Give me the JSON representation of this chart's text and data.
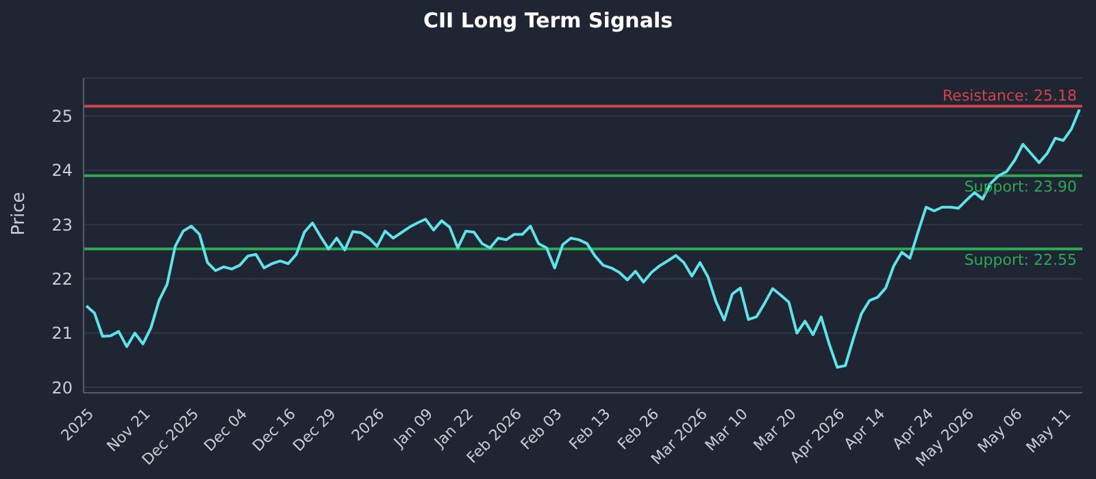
{
  "chart_data": {
    "type": "line",
    "title": "CII Long Term Signals",
    "ylabel": "Price",
    "categories": [
      null,
      "2025",
      null,
      null,
      null,
      null,
      null,
      null,
      "Nov 21",
      null,
      null,
      null,
      null,
      null,
      "Dec 2025",
      null,
      null,
      null,
      null,
      null,
      "Dec 04",
      null,
      null,
      null,
      null,
      null,
      "Dec 16",
      null,
      null,
      null,
      null,
      "Dec 29",
      null,
      null,
      null,
      null,
      null,
      "2026",
      null,
      null,
      null,
      null,
      null,
      "Jan 09",
      null,
      null,
      null,
      null,
      "Jan 22",
      null,
      null,
      null,
      null,
      null,
      "Feb 2026",
      null,
      null,
      null,
      null,
      "Feb 03",
      null,
      null,
      null,
      null,
      null,
      "Feb 13",
      null,
      null,
      null,
      null,
      null,
      "Feb 26",
      null,
      null,
      null,
      null,
      null,
      "Mar 2026",
      null,
      null,
      null,
      null,
      "Mar 10",
      null,
      null,
      null,
      null,
      null,
      "Mar 20",
      null,
      null,
      null,
      null,
      null,
      "Apr 2026",
      null,
      null,
      null,
      null,
      "Apr 14",
      null,
      null,
      null,
      null,
      null,
      "Apr 24",
      null,
      null,
      null,
      null,
      "May 2026",
      null,
      null,
      null,
      null,
      null,
      "May 06",
      null,
      null,
      null,
      null,
      null,
      "May 11",
      null
    ],
    "series": [
      {
        "color": "#5fe3e8",
        "values": [
          21.5,
          21.37,
          20.94,
          20.95,
          21.03,
          20.75,
          21.0,
          20.8,
          21.1,
          21.6,
          21.9,
          22.6,
          22.88,
          22.97,
          22.82,
          22.3,
          22.15,
          22.22,
          22.18,
          22.25,
          22.42,
          22.45,
          22.2,
          22.28,
          22.33,
          22.28,
          22.45,
          22.86,
          23.03,
          22.78,
          22.55,
          22.75,
          22.53,
          22.87,
          22.85,
          22.75,
          22.6,
          22.88,
          22.75,
          22.85,
          22.95,
          23.03,
          23.1,
          22.9,
          23.07,
          22.95,
          22.57,
          22.88,
          22.86,
          22.65,
          22.57,
          22.75,
          22.72,
          22.82,
          22.82,
          22.97,
          22.65,
          22.57,
          22.2,
          22.63,
          22.75,
          22.72,
          22.65,
          22.42,
          22.25,
          22.2,
          22.12,
          21.98,
          22.14,
          21.94,
          22.12,
          22.24,
          22.33,
          22.43,
          22.3,
          22.05,
          22.3,
          22.03,
          21.57,
          21.24,
          21.72,
          21.83,
          21.25,
          21.3,
          21.55,
          21.82,
          21.7,
          21.57,
          21.0,
          21.22,
          20.97,
          21.3,
          20.8,
          20.37,
          20.4,
          20.9,
          21.36,
          21.6,
          21.66,
          21.83,
          22.24,
          22.49,
          22.38,
          22.86,
          23.32,
          23.25,
          23.32,
          23.32,
          23.3,
          23.45,
          23.59,
          23.47,
          23.76,
          23.9,
          23.98,
          24.19,
          24.48,
          24.31,
          24.14,
          24.31,
          24.59,
          24.55,
          24.76,
          25.12
        ]
      }
    ],
    "ylim": [
      19.9,
      25.7
    ],
    "yticks": [
      20,
      21,
      22,
      23,
      24,
      25
    ],
    "grid": "y",
    "marker": "none",
    "line_style": "solid",
    "ref_lines": [
      {
        "axis": "y",
        "value": 25.18,
        "label": "Resistance: 25.18",
        "color": "#d0454c"
      },
      {
        "axis": "y",
        "value": 23.9,
        "label": "Support: 23.90",
        "color": "#2eaa55"
      },
      {
        "axis": "y",
        "value": 22.55,
        "label": "Support: 22.55",
        "color": "#2eaa55"
      }
    ]
  }
}
